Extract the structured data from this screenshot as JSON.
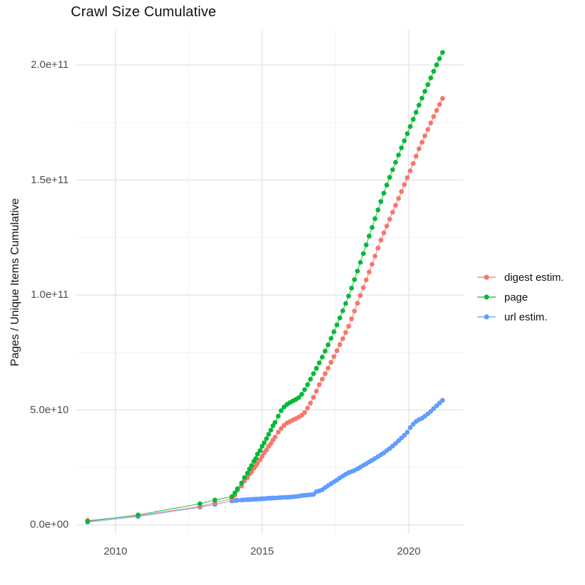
{
  "title": "Crawl Size Cumulative",
  "y_axis_title": "Pages / Unique Items Cumulative",
  "legend": {
    "entries": [
      {
        "label": "digest estim.",
        "color": "#F8766D"
      },
      {
        "label": "page",
        "color": "#00BA38"
      },
      {
        "label": "url estim.",
        "color": "#619CFF"
      }
    ]
  },
  "colors": {
    "grid_major": "#E7E7E7",
    "grid_minor": "#F2F2F2",
    "tick_text": "#4d4d4d",
    "title_text": "#111111"
  },
  "chart_data": {
    "type": "scatter",
    "title": "Crawl Size Cumulative",
    "xlabel": "",
    "ylabel": "Pages / Unique Items Cumulative",
    "values_unit": "1e9 (billions); y tick labels shown in scientific notation",
    "grid": "on",
    "legend_position": "right",
    "xlim": [
      2008.647,
      2021.88
    ],
    "ylim_e9": [
      -4,
      215.4
    ],
    "x_ticks": [
      {
        "label": "2010",
        "year": 2010
      },
      {
        "label": "2015",
        "year": 2015
      },
      {
        "label": "2020",
        "year": 2020
      }
    ],
    "x_minor": [
      2012.5,
      2017.5
    ],
    "y_ticks": [
      {
        "label": "0.0e+00",
        "value": 0
      },
      {
        "label": "5.0e+10",
        "value": 50
      },
      {
        "label": "1.0e+11",
        "value": 100
      },
      {
        "label": "1.5e+11",
        "value": 150
      },
      {
        "label": "2.0e+11",
        "value": 200
      }
    ],
    "y_minor": [
      25,
      75,
      125,
      175
    ],
    "series": [
      {
        "name": "url estim.",
        "color": "#619CFF",
        "points": [
          [
            2009.05,
            1.2
          ],
          [
            2010.77,
            3.6
          ],
          [
            2012.88,
            7.7
          ],
          [
            2013.39,
            8.9
          ],
          [
            2013.97,
            10.4
          ],
          [
            2014.07,
            10.6
          ],
          [
            2014.16,
            10.7
          ],
          [
            2014.3,
            10.8
          ],
          [
            2014.4,
            10.9
          ],
          [
            2014.5,
            11.0
          ],
          [
            2014.57,
            11.0
          ],
          [
            2014.64,
            11.1
          ],
          [
            2014.72,
            11.1
          ],
          [
            2014.79,
            11.2
          ],
          [
            2014.84,
            11.2
          ],
          [
            2014.93,
            11.3
          ],
          [
            2015.0,
            11.4
          ],
          [
            2015.07,
            11.4
          ],
          [
            2015.15,
            11.5
          ],
          [
            2015.22,
            11.6
          ],
          [
            2015.3,
            11.6
          ],
          [
            2015.37,
            11.7
          ],
          [
            2015.44,
            11.7
          ],
          [
            2015.55,
            11.8
          ],
          [
            2015.65,
            11.9
          ],
          [
            2015.75,
            12.0
          ],
          [
            2015.85,
            12.0
          ],
          [
            2015.95,
            12.1
          ],
          [
            2016.05,
            12.2
          ],
          [
            2016.15,
            12.3
          ],
          [
            2016.25,
            12.5
          ],
          [
            2016.35,
            12.7
          ],
          [
            2016.45,
            12.9
          ],
          [
            2016.55,
            13.0
          ],
          [
            2016.65,
            13.1
          ],
          [
            2016.75,
            13.2
          ],
          [
            2016.85,
            14.4
          ],
          [
            2016.95,
            14.8
          ],
          [
            2017.05,
            15.3
          ],
          [
            2017.15,
            16.2
          ],
          [
            2017.25,
            17.1
          ],
          [
            2017.35,
            17.9
          ],
          [
            2017.45,
            18.7
          ],
          [
            2017.55,
            19.5
          ],
          [
            2017.65,
            20.4
          ],
          [
            2017.75,
            21.2
          ],
          [
            2017.85,
            22.0
          ],
          [
            2017.95,
            22.7
          ],
          [
            2018.05,
            23.2
          ],
          [
            2018.15,
            23.7
          ],
          [
            2018.25,
            24.4
          ],
          [
            2018.35,
            25.1
          ],
          [
            2018.45,
            25.9
          ],
          [
            2018.55,
            26.6
          ],
          [
            2018.65,
            27.4
          ],
          [
            2018.75,
            28.1
          ],
          [
            2018.85,
            28.9
          ],
          [
            2018.95,
            29.7
          ],
          [
            2019.05,
            30.5
          ],
          [
            2019.15,
            31.3
          ],
          [
            2019.25,
            32.3
          ],
          [
            2019.35,
            33.2
          ],
          [
            2019.45,
            34.3
          ],
          [
            2019.55,
            35.4
          ],
          [
            2019.65,
            36.6
          ],
          [
            2019.75,
            37.8
          ],
          [
            2019.85,
            39.0
          ],
          [
            2019.95,
            40.3
          ],
          [
            2020.05,
            42.3
          ],
          [
            2020.15,
            43.8
          ],
          [
            2020.25,
            45.0
          ],
          [
            2020.35,
            45.8
          ],
          [
            2020.45,
            46.4
          ],
          [
            2020.55,
            47.3
          ],
          [
            2020.65,
            48.3
          ],
          [
            2020.75,
            49.4
          ],
          [
            2020.85,
            50.6
          ],
          [
            2020.95,
            51.8
          ],
          [
            2021.05,
            53.0
          ],
          [
            2021.15,
            54.2
          ]
        ]
      },
      {
        "name": "digest estim.",
        "color": "#F8766D",
        "points": [
          [
            2009.05,
            1.9
          ],
          [
            2010.77,
            4.0
          ],
          [
            2012.88,
            8.0
          ],
          [
            2013.39,
            9.6
          ],
          [
            2013.97,
            11.4
          ],
          [
            2014.07,
            12.9
          ],
          [
            2014.16,
            15.1
          ],
          [
            2014.3,
            16.9
          ],
          [
            2014.4,
            19.1
          ],
          [
            2014.5,
            20.6
          ],
          [
            2014.57,
            22.2
          ],
          [
            2014.64,
            23.1
          ],
          [
            2014.72,
            24.6
          ],
          [
            2014.79,
            25.8
          ],
          [
            2014.84,
            26.8
          ],
          [
            2014.93,
            28.3
          ],
          [
            2015.0,
            29.8
          ],
          [
            2015.07,
            31.4
          ],
          [
            2015.15,
            32.6
          ],
          [
            2015.22,
            34.2
          ],
          [
            2015.3,
            35.4
          ],
          [
            2015.37,
            36.9
          ],
          [
            2015.44,
            38.2
          ],
          [
            2015.55,
            40.3
          ],
          [
            2015.65,
            41.9
          ],
          [
            2015.75,
            43.3
          ],
          [
            2015.85,
            44.3
          ],
          [
            2015.95,
            45.0
          ],
          [
            2016.05,
            45.6
          ],
          [
            2016.15,
            46.2
          ],
          [
            2016.25,
            46.9
          ],
          [
            2016.35,
            47.7
          ],
          [
            2016.45,
            48.9
          ],
          [
            2016.55,
            50.8
          ],
          [
            2016.65,
            53.0
          ],
          [
            2016.75,
            55.5
          ],
          [
            2016.85,
            58.2
          ],
          [
            2016.95,
            61.0
          ],
          [
            2017.05,
            63.4
          ],
          [
            2017.15,
            65.8
          ],
          [
            2017.25,
            68.2
          ],
          [
            2017.35,
            70.7
          ],
          [
            2017.45,
            73.2
          ],
          [
            2017.55,
            75.8
          ],
          [
            2017.65,
            78.4
          ],
          [
            2017.75,
            81.0
          ],
          [
            2017.85,
            83.7
          ],
          [
            2017.95,
            86.4
          ],
          [
            2018.05,
            89.6
          ],
          [
            2018.15,
            93.0
          ],
          [
            2018.25,
            96.4
          ],
          [
            2018.35,
            99.8
          ],
          [
            2018.45,
            103.2
          ],
          [
            2018.55,
            106.6
          ],
          [
            2018.65,
            110.0
          ],
          [
            2018.75,
            113.4
          ],
          [
            2018.85,
            116.9
          ],
          [
            2018.95,
            120.4
          ],
          [
            2019.05,
            123.9
          ],
          [
            2019.15,
            127.0
          ],
          [
            2019.25,
            130.0
          ],
          [
            2019.35,
            133.0
          ],
          [
            2019.45,
            136.0
          ],
          [
            2019.55,
            139.0
          ],
          [
            2019.65,
            142.0
          ],
          [
            2019.75,
            145.0
          ],
          [
            2019.85,
            148.0
          ],
          [
            2019.95,
            151.0
          ],
          [
            2020.05,
            154.0
          ],
          [
            2020.15,
            157.2
          ],
          [
            2020.25,
            160.4
          ],
          [
            2020.35,
            163.6
          ],
          [
            2020.45,
            166.4
          ],
          [
            2020.55,
            169.2
          ],
          [
            2020.65,
            172.0
          ],
          [
            2020.75,
            174.8
          ],
          [
            2020.85,
            177.6
          ],
          [
            2020.95,
            180.3
          ],
          [
            2021.05,
            182.9
          ],
          [
            2021.15,
            185.5
          ]
        ]
      },
      {
        "name": "page",
        "color": "#00BA38",
        "points": [
          [
            2009.05,
            1.5
          ],
          [
            2010.77,
            4.3
          ],
          [
            2012.88,
            9.2
          ],
          [
            2013.39,
            10.8
          ],
          [
            2013.97,
            12.3
          ],
          [
            2014.07,
            13.9
          ],
          [
            2014.16,
            15.7
          ],
          [
            2014.3,
            18.2
          ],
          [
            2014.4,
            20.6
          ],
          [
            2014.5,
            22.5
          ],
          [
            2014.57,
            24.3
          ],
          [
            2014.64,
            25.8
          ],
          [
            2014.72,
            27.7
          ],
          [
            2014.79,
            28.9
          ],
          [
            2014.84,
            30.8
          ],
          [
            2014.93,
            32.3
          ],
          [
            2015.0,
            34.2
          ],
          [
            2015.07,
            35.7
          ],
          [
            2015.15,
            37.5
          ],
          [
            2015.22,
            39.4
          ],
          [
            2015.3,
            41.2
          ],
          [
            2015.37,
            43.1
          ],
          [
            2015.44,
            44.6
          ],
          [
            2015.55,
            47.3
          ],
          [
            2015.65,
            49.7
          ],
          [
            2015.75,
            51.3
          ],
          [
            2015.85,
            52.4
          ],
          [
            2015.95,
            53.2
          ],
          [
            2016.05,
            53.9
          ],
          [
            2016.15,
            54.6
          ],
          [
            2016.25,
            55.4
          ],
          [
            2016.35,
            56.8
          ],
          [
            2016.45,
            58.8
          ],
          [
            2016.55,
            61.0
          ],
          [
            2016.65,
            63.4
          ],
          [
            2016.75,
            65.8
          ],
          [
            2016.85,
            68.1
          ],
          [
            2016.95,
            70.5
          ],
          [
            2017.05,
            73.0
          ],
          [
            2017.15,
            75.6
          ],
          [
            2017.25,
            78.3
          ],
          [
            2017.35,
            81.1
          ],
          [
            2017.45,
            84.0
          ],
          [
            2017.55,
            87.0
          ],
          [
            2017.65,
            90.0
          ],
          [
            2017.75,
            93.1
          ],
          [
            2017.85,
            96.3
          ],
          [
            2017.95,
            99.5
          ],
          [
            2018.05,
            103.0
          ],
          [
            2018.15,
            106.7
          ],
          [
            2018.25,
            110.4
          ],
          [
            2018.35,
            114.2
          ],
          [
            2018.45,
            118.0
          ],
          [
            2018.55,
            121.8
          ],
          [
            2018.65,
            125.6
          ],
          [
            2018.75,
            129.4
          ],
          [
            2018.85,
            133.2
          ],
          [
            2018.95,
            137.0
          ],
          [
            2019.05,
            140.7
          ],
          [
            2019.15,
            144.3
          ],
          [
            2019.25,
            147.8
          ],
          [
            2019.35,
            151.2
          ],
          [
            2019.45,
            154.5
          ],
          [
            2019.55,
            157.7
          ],
          [
            2019.65,
            160.9
          ],
          [
            2019.75,
            164.0
          ],
          [
            2019.85,
            167.1
          ],
          [
            2019.95,
            170.2
          ],
          [
            2020.05,
            173.3
          ],
          [
            2020.15,
            176.4
          ],
          [
            2020.25,
            179.5
          ],
          [
            2020.35,
            182.6
          ],
          [
            2020.45,
            185.6
          ],
          [
            2020.55,
            188.6
          ],
          [
            2020.65,
            191.5
          ],
          [
            2020.75,
            194.4
          ],
          [
            2020.85,
            197.3
          ],
          [
            2020.95,
            200.1
          ],
          [
            2021.05,
            202.8
          ],
          [
            2021.15,
            205.5
          ]
        ]
      }
    ]
  }
}
